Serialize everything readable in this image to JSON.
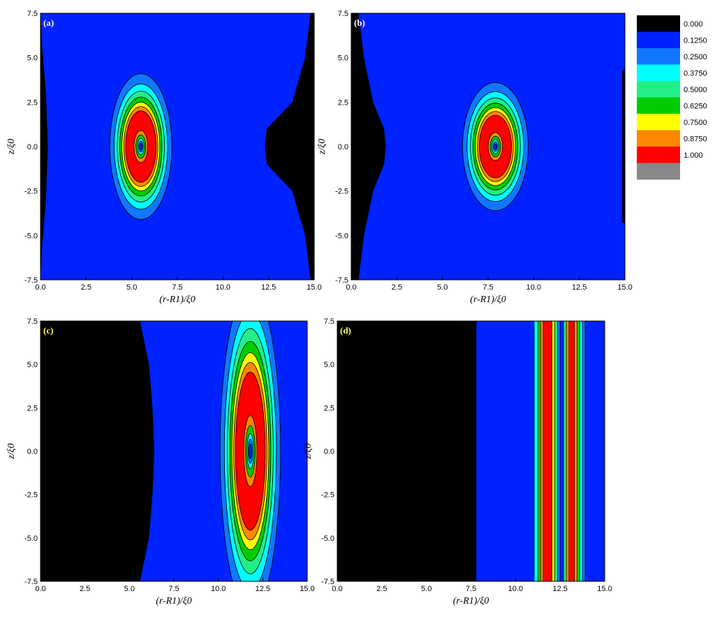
{
  "colors": {
    "levels": [
      "#000000",
      "#0022ff",
      "#1177ff",
      "#00ffff",
      "#22ee88",
      "#00cc00",
      "#ffff00",
      "#ff8800",
      "#ff0000",
      "#888888"
    ],
    "contour_line": "#000000"
  },
  "legend": {
    "entries": [
      "0.000",
      "0.1250",
      "0.2500",
      "0.3750",
      "0.5000",
      "0.6250",
      "0.7500",
      "0.8750",
      "1.000"
    ]
  },
  "chart_data": [
    {
      "type": "heatmap",
      "panel_label": "(a)",
      "xlabel": "(r-R1)/ξ0",
      "ylabel": "z/ξ0",
      "xlim": [
        0,
        15
      ],
      "ylim": [
        -7.5,
        7.5
      ],
      "xticks": [
        "0.0",
        "2.5",
        "5.0",
        "7.5",
        "10.0",
        "12.5",
        "15.0"
      ],
      "yticks": [
        "7.5",
        "5.0",
        "2.5",
        "0.0",
        "-2.5",
        "-5.0",
        "-7.5"
      ],
      "vortex_center": [
        5.5,
        0.0
      ],
      "vortex_semi_axes": [
        1.7,
        4.1
      ],
      "black_regions": [
        {
          "side": "left",
          "edge_x": [
            [
              -7.5,
              0.0
            ],
            [
              -5.5,
              0.1
            ],
            [
              -3.0,
              0.3
            ],
            [
              0.0,
              0.4
            ],
            [
              3.0,
              0.3
            ],
            [
              5.5,
              0.1
            ],
            [
              7.5,
              0.0
            ]
          ]
        },
        {
          "side": "right",
          "edge_x": [
            [
              -7.5,
              14.8
            ],
            [
              -5.0,
              14.5
            ],
            [
              -2.5,
              13.8
            ],
            [
              -1.0,
              12.4
            ],
            [
              0.0,
              12.3
            ],
            [
              1.0,
              12.4
            ],
            [
              2.5,
              13.8
            ],
            [
              5.0,
              14.5
            ],
            [
              7.5,
              14.8
            ]
          ]
        }
      ]
    },
    {
      "type": "heatmap",
      "panel_label": "(b)",
      "xlabel": "(r-R1)/ξ0",
      "ylabel": "z/ξ0",
      "xlim": [
        0,
        15
      ],
      "ylim": [
        -7.5,
        7.5
      ],
      "xticks": [
        "0.0",
        "2.5",
        "5.0",
        "7.5",
        "10.0",
        "12.5",
        "15.0"
      ],
      "yticks": [
        "7.5",
        "5.0",
        "2.5",
        "0.0",
        "-2.5",
        "-5.0",
        "-7.5"
      ],
      "vortex_center": [
        7.9,
        0.0
      ],
      "vortex_semi_axes": [
        1.8,
        3.6
      ],
      "black_regions": [
        {
          "side": "left",
          "edge_x": [
            [
              -7.5,
              0.4
            ],
            [
              -5.0,
              0.7
            ],
            [
              -2.5,
              1.2
            ],
            [
              -1.0,
              1.8
            ],
            [
              0.0,
              1.9
            ],
            [
              1.0,
              1.8
            ],
            [
              2.5,
              1.2
            ],
            [
              5.0,
              0.7
            ],
            [
              7.5,
              0.4
            ]
          ]
        },
        {
          "side": "right",
          "edge_x": [
            [
              -4.3,
              14.85
            ],
            [
              4.3,
              14.85
            ]
          ]
        }
      ]
    },
    {
      "type": "heatmap",
      "panel_label": "(c)",
      "xlabel": "(r-R1)/ξ0",
      "ylabel": "z/ξ0",
      "xlim": [
        0,
        15
      ],
      "ylim": [
        -7.5,
        7.5
      ],
      "xticks": [
        "0.0",
        "2.5",
        "5.0",
        "7.5",
        "10.0",
        "12.5",
        "15.0"
      ],
      "yticks": [
        "7.5",
        "5.0",
        "2.5",
        "0.0",
        "-2.5",
        "-5.0",
        "-7.5"
      ],
      "vortex_center": [
        11.8,
        0.0
      ],
      "vortex_semi_axes": [
        1.7,
        9.3
      ],
      "black_regions": [
        {
          "side": "left",
          "edge_x": [
            [
              -7.5,
              5.6
            ],
            [
              -5.0,
              6.1
            ],
            [
              -2.5,
              6.3
            ],
            [
              0.0,
              6.4
            ],
            [
              2.5,
              6.3
            ],
            [
              5.0,
              6.1
            ],
            [
              7.5,
              5.6
            ]
          ]
        }
      ]
    },
    {
      "type": "heatmap",
      "panel_label": "(d)",
      "xlabel": "(r-R1)/ξ0",
      "ylabel": "z/ξ0",
      "xlim": [
        0,
        15
      ],
      "ylim": [
        -7.5,
        7.5
      ],
      "xticks": [
        "0.0",
        "2.5",
        "5.0",
        "7.5",
        "10.0",
        "12.5",
        "15.0"
      ],
      "yticks": [
        "7.5",
        "5.0",
        "2.5",
        "0.0",
        "-2.5",
        "-5.0",
        "-7.5"
      ],
      "black_regions": [
        {
          "side": "left",
          "edge_x": [
            [
              -7.5,
              7.8
            ],
            [
              7.5,
              7.8
            ]
          ]
        }
      ],
      "stripes": [
        {
          "x0": 11.05,
          "x1": 11.25,
          "level": 3
        },
        {
          "x0": 11.25,
          "x1": 11.4,
          "level": 5
        },
        {
          "x0": 11.4,
          "x1": 11.55,
          "level": 7
        },
        {
          "x0": 11.55,
          "x1": 12.05,
          "level": 8
        },
        {
          "x0": 12.05,
          "x1": 12.2,
          "level": 6
        },
        {
          "x0": 12.2,
          "x1": 12.35,
          "level": 4
        },
        {
          "x0": 12.35,
          "x1": 12.5,
          "level": 2
        },
        {
          "x0": 12.5,
          "x1": 12.7,
          "level": 1
        },
        {
          "x0": 12.7,
          "x1": 12.85,
          "level": 4
        },
        {
          "x0": 12.85,
          "x1": 13.0,
          "level": 7
        },
        {
          "x0": 13.0,
          "x1": 13.3,
          "level": 8
        },
        {
          "x0": 13.3,
          "x1": 13.45,
          "level": 7
        },
        {
          "x0": 13.45,
          "x1": 13.6,
          "level": 5
        },
        {
          "x0": 13.6,
          "x1": 13.75,
          "level": 3
        },
        {
          "x0": 13.75,
          "x1": 13.9,
          "level": 2
        }
      ]
    }
  ]
}
